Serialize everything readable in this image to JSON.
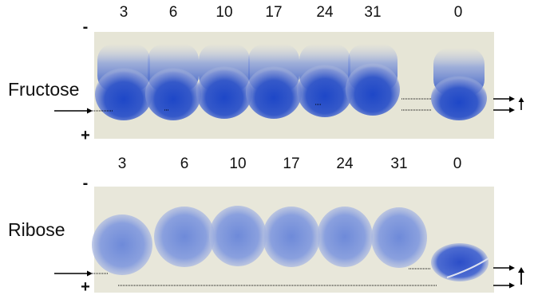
{
  "colors": {
    "gel_background": "#e7e6d8",
    "band_color": "#3f5fc8",
    "band_dark": "#1c3fbd",
    "marker_line": "#000000"
  },
  "panels": [
    {
      "sugar": "Fructose",
      "lanes": [
        "3",
        "6",
        "10",
        "17",
        "24",
        "31",
        "0"
      ],
      "top_sign": "-",
      "bottom_sign": "+",
      "right_arrow_glyph": "↑"
    },
    {
      "sugar": "Ribose",
      "lanes": [
        "3",
        "6",
        "10",
        "17",
        "24",
        "31",
        "0"
      ],
      "top_sign": "-",
      "bottom_sign": "+",
      "right_arrow_glyph": "↑"
    }
  ]
}
